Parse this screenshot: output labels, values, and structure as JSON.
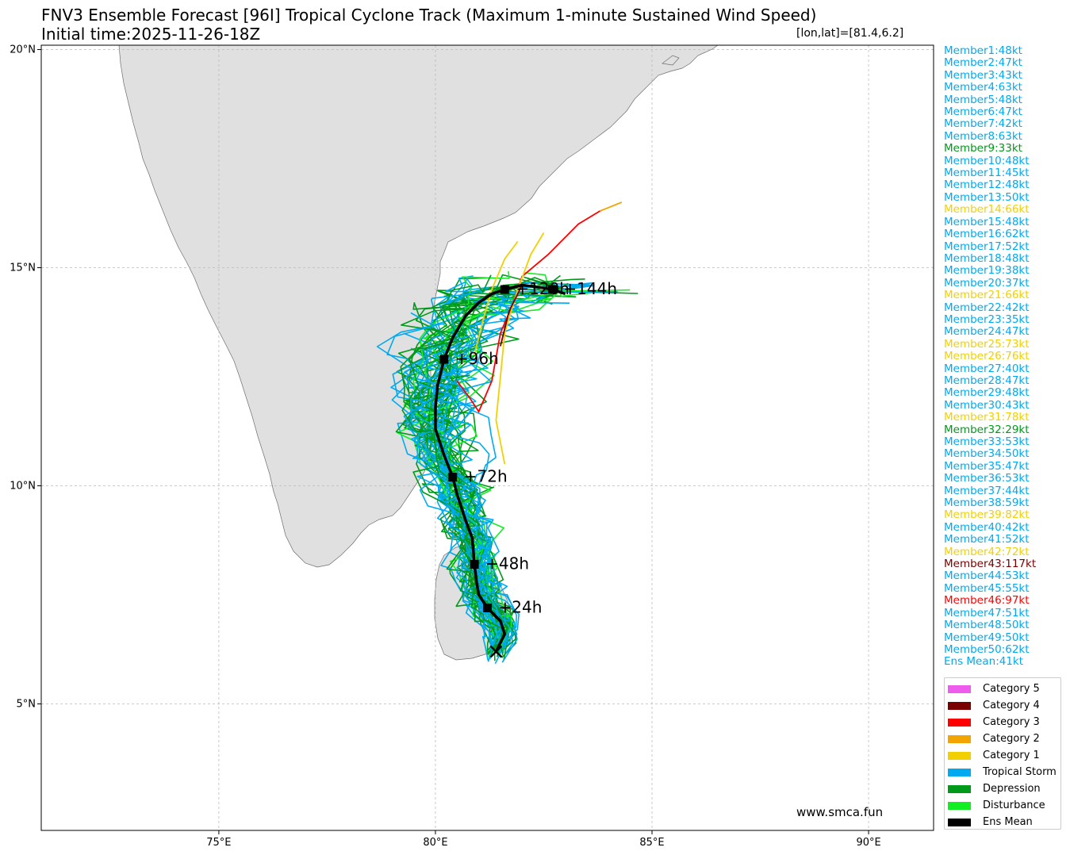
{
  "title_line1": "FNV3 Ensemble Forecast [96I] Tropical Cyclone Track (Maximum 1-minute Sustained Wind Speed)",
  "title_line2": "Initial time:2025-11-26-18Z",
  "lonlat_readout": "[lon,lat]=[81.4,6.2]",
  "watermark": "www.smca.fun",
  "axes": {
    "lon_range": [
      70.9,
      91.5
    ],
    "lat_range": [
      2.1,
      20.1
    ],
    "lon_ticks": [
      {
        "v": 75,
        "label": "75°E"
      },
      {
        "v": 80,
        "label": "80°E"
      },
      {
        "v": 85,
        "label": "85°E"
      },
      {
        "v": 90,
        "label": "90°E"
      }
    ],
    "lat_ticks": [
      {
        "v": 20,
        "label": "20°N"
      },
      {
        "v": 15,
        "label": "15°N"
      },
      {
        "v": 10,
        "label": "10°N"
      },
      {
        "v": 5,
        "label": "5°N"
      }
    ],
    "grid": true
  },
  "colors": {
    "land": "#e0e0e0",
    "coast": "#6e6e6e",
    "cat5": "#ee5cee",
    "cat4": "#7a0000",
    "cat3": "#ff0000",
    "cat2": "#f2a500",
    "cat1": "#f2d000",
    "ts": "#00aaf0",
    "dep": "#009a1a",
    "dist": "#11ee22",
    "mean": "#000000"
  },
  "members": [
    {
      "label": "Member1:48kt",
      "cat": "ts"
    },
    {
      "label": "Member2:47kt",
      "cat": "ts"
    },
    {
      "label": "Member3:43kt",
      "cat": "ts"
    },
    {
      "label": "Member4:63kt",
      "cat": "ts"
    },
    {
      "label": "Member5:48kt",
      "cat": "ts"
    },
    {
      "label": "Member6:47kt",
      "cat": "ts"
    },
    {
      "label": "Member7:42kt",
      "cat": "ts"
    },
    {
      "label": "Member8:63kt",
      "cat": "ts"
    },
    {
      "label": "Member9:33kt",
      "cat": "dep"
    },
    {
      "label": "Member10:48kt",
      "cat": "ts"
    },
    {
      "label": "Member11:45kt",
      "cat": "ts"
    },
    {
      "label": "Member12:48kt",
      "cat": "ts"
    },
    {
      "label": "Member13:50kt",
      "cat": "ts"
    },
    {
      "label": "Member14:66kt",
      "cat": "cat1"
    },
    {
      "label": "Member15:48kt",
      "cat": "ts"
    },
    {
      "label": "Member16:62kt",
      "cat": "ts"
    },
    {
      "label": "Member17:52kt",
      "cat": "ts"
    },
    {
      "label": "Member18:48kt",
      "cat": "ts"
    },
    {
      "label": "Member19:38kt",
      "cat": "ts"
    },
    {
      "label": "Member20:37kt",
      "cat": "ts"
    },
    {
      "label": "Member21:66kt",
      "cat": "cat1"
    },
    {
      "label": "Member22:42kt",
      "cat": "ts"
    },
    {
      "label": "Member23:35kt",
      "cat": "ts"
    },
    {
      "label": "Member24:47kt",
      "cat": "ts"
    },
    {
      "label": "Member25:73kt",
      "cat": "cat1"
    },
    {
      "label": "Member26:76kt",
      "cat": "cat1"
    },
    {
      "label": "Member27:40kt",
      "cat": "ts"
    },
    {
      "label": "Member28:47kt",
      "cat": "ts"
    },
    {
      "label": "Member29:48kt",
      "cat": "ts"
    },
    {
      "label": "Member30:43kt",
      "cat": "ts"
    },
    {
      "label": "Member31:78kt",
      "cat": "cat1"
    },
    {
      "label": "Member32:29kt",
      "cat": "dep"
    },
    {
      "label": "Member33:53kt",
      "cat": "ts"
    },
    {
      "label": "Member34:50kt",
      "cat": "ts"
    },
    {
      "label": "Member35:47kt",
      "cat": "ts"
    },
    {
      "label": "Member36:53kt",
      "cat": "ts"
    },
    {
      "label": "Member37:44kt",
      "cat": "ts"
    },
    {
      "label": "Member38:59kt",
      "cat": "ts"
    },
    {
      "label": "Member39:82kt",
      "cat": "cat1"
    },
    {
      "label": "Member40:42kt",
      "cat": "ts"
    },
    {
      "label": "Member41:52kt",
      "cat": "ts"
    },
    {
      "label": "Member42:72kt",
      "cat": "cat1"
    },
    {
      "label": "Member43:117kt",
      "cat": "cat4"
    },
    {
      "label": "Member44:53kt",
      "cat": "ts"
    },
    {
      "label": "Member45:55kt",
      "cat": "ts"
    },
    {
      "label": "Member46:97kt",
      "cat": "cat3"
    },
    {
      "label": "Member47:51kt",
      "cat": "ts"
    },
    {
      "label": "Member48:50kt",
      "cat": "ts"
    },
    {
      "label": "Member49:50kt",
      "cat": "ts"
    },
    {
      "label": "Member50:62kt",
      "cat": "ts"
    },
    {
      "label": "Ens Mean:41kt",
      "cat": "ts"
    }
  ],
  "legend": [
    {
      "label": "Category 5",
      "cat": "cat5"
    },
    {
      "label": "Category 4",
      "cat": "cat4"
    },
    {
      "label": "Category 3",
      "cat": "cat3"
    },
    {
      "label": "Category 2",
      "cat": "cat2"
    },
    {
      "label": "Category 1",
      "cat": "cat1"
    },
    {
      "label": "Tropical Storm",
      "cat": "ts"
    },
    {
      "label": "Depression",
      "cat": "dep"
    },
    {
      "label": "Disturbance",
      "cat": "dist"
    },
    {
      "label": "Ens Mean",
      "cat": "mean"
    }
  ],
  "ens_mean_track": [
    [
      81.4,
      6.2
    ],
    [
      81.6,
      6.6
    ],
    [
      81.5,
      6.9
    ],
    [
      81.2,
      7.2
    ],
    [
      81.0,
      7.5
    ],
    [
      80.95,
      7.8
    ],
    [
      80.9,
      8.2
    ],
    [
      80.85,
      8.8
    ],
    [
      80.7,
      9.2
    ],
    [
      80.5,
      9.8
    ],
    [
      80.4,
      10.2
    ],
    [
      80.2,
      10.7
    ],
    [
      80.0,
      11.3
    ],
    [
      80.0,
      11.8
    ],
    [
      80.05,
      12.3
    ],
    [
      80.2,
      12.9
    ],
    [
      80.4,
      13.4
    ],
    [
      80.7,
      13.9
    ],
    [
      81.0,
      14.2
    ],
    [
      81.3,
      14.4
    ],
    [
      81.6,
      14.5
    ],
    [
      82.0,
      14.6
    ],
    [
      82.4,
      14.55
    ],
    [
      82.7,
      14.5
    ],
    [
      83.0,
      14.4
    ]
  ],
  "markers": [
    {
      "lon": 81.2,
      "lat": 7.2,
      "label": "+24h"
    },
    {
      "lon": 80.9,
      "lat": 8.2,
      "label": "+48h"
    },
    {
      "lon": 80.4,
      "lat": 10.2,
      "label": "+72h"
    },
    {
      "lon": 80.2,
      "lat": 12.9,
      "label": "+96h"
    },
    {
      "lon": 81.6,
      "lat": 14.5,
      "label": "+120h"
    },
    {
      "lon": 82.7,
      "lat": 14.5,
      "label": "+144h"
    }
  ],
  "feature_tracks": [
    {
      "cat": "cat3",
      "pts": [
        [
          80.5,
          12.4
        ],
        [
          80.8,
          12.0
        ],
        [
          81.0,
          11.7
        ],
        [
          81.3,
          12.4
        ],
        [
          81.5,
          13.5
        ],
        [
          81.8,
          14.2
        ],
        [
          82.0,
          14.8
        ],
        [
          82.6,
          15.3
        ],
        [
          83.3,
          16.0
        ],
        [
          83.8,
          16.3
        ]
      ]
    },
    {
      "cat": "cat2",
      "pts": [
        [
          83.8,
          16.3
        ],
        [
          84.3,
          16.5
        ]
      ]
    },
    {
      "cat": "cat1",
      "pts": [
        [
          81.6,
          10.5
        ],
        [
          81.4,
          11.5
        ],
        [
          81.5,
          12.5
        ],
        [
          81.6,
          13.5
        ],
        [
          81.9,
          14.5
        ],
        [
          82.2,
          15.3
        ],
        [
          82.5,
          15.8
        ]
      ]
    },
    {
      "cat": "cat1",
      "pts": [
        [
          80.9,
          13.0
        ],
        [
          81.1,
          13.8
        ],
        [
          81.3,
          14.5
        ],
        [
          81.6,
          15.2
        ],
        [
          81.9,
          15.6
        ]
      ]
    },
    {
      "cat": "cat4",
      "pts": [
        [
          81.5,
          13.2
        ],
        [
          81.7,
          14.0
        ],
        [
          82.0,
          14.6
        ]
      ]
    }
  ]
}
